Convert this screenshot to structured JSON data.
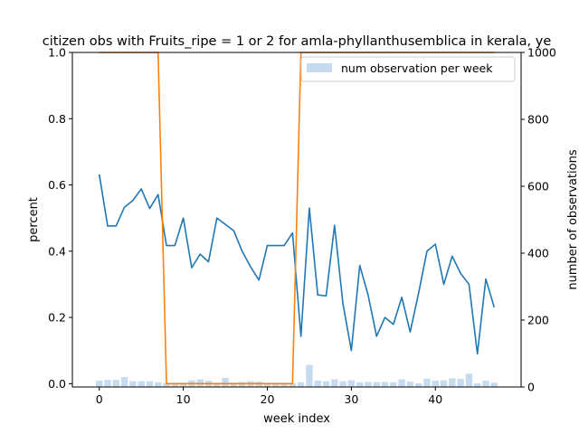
{
  "chart_data": {
    "type": "line",
    "title": "citizen obs with Fruits_ripe = 1 or 2 for amla-phyllanthusemblica in kerala, ye",
    "xlabel": "week index",
    "ylabel": "percent",
    "y2label": "number of observations",
    "xlim": [
      -3.2,
      50.2
    ],
    "ylim": [
      -0.01,
      1.0
    ],
    "y2lim": [
      0,
      1000
    ],
    "xticks": [
      0,
      10,
      20,
      30,
      40
    ],
    "yticks": [
      0.0,
      0.2,
      0.4,
      0.6,
      0.8,
      1.0
    ],
    "y2ticks": [
      0,
      200,
      400,
      600,
      800,
      1000
    ],
    "grid": false,
    "legend_position": "top-right",
    "colors": {
      "line1": "#1f77b4",
      "line2": "#ff7f0e",
      "bars": "#c6dbef"
    },
    "x": [
      0,
      1,
      2,
      3,
      4,
      5,
      6,
      7,
      8,
      9,
      10,
      11,
      12,
      13,
      14,
      15,
      16,
      17,
      18,
      19,
      20,
      21,
      22,
      23,
      24,
      25,
      26,
      27,
      28,
      29,
      30,
      31,
      32,
      33,
      34,
      35,
      36,
      37,
      38,
      39,
      40,
      41,
      42,
      43,
      44,
      45,
      46,
      47
    ],
    "series": [
      {
        "axis": "left",
        "color": "#1f77b4",
        "values": [
          0.632,
          0.476,
          0.476,
          0.533,
          0.553,
          0.588,
          0.529,
          0.571,
          0.417,
          0.417,
          0.5,
          0.35,
          0.391,
          0.368,
          0.5,
          0.481,
          0.462,
          0.4,
          0.353,
          0.313,
          0.417,
          0.417,
          0.417,
          0.455,
          0.143,
          0.53,
          0.268,
          0.265,
          0.478,
          0.241,
          0.1,
          0.357,
          0.267,
          0.143,
          0.2,
          0.179,
          0.261,
          0.156,
          0.273,
          0.4,
          0.421,
          0.3,
          0.385,
          0.333,
          0.3,
          0.09,
          0.316,
          0.231
        ]
      },
      {
        "axis": "left",
        "color": "#ff7f0e",
        "values": [
          1,
          1,
          1,
          1,
          1,
          1,
          1,
          1,
          0,
          0,
          0,
          0,
          0,
          0,
          0,
          0,
          0,
          0,
          0,
          0,
          0,
          0,
          0,
          0,
          1,
          1,
          1,
          1,
          1,
          1,
          1,
          1,
          1,
          1,
          1,
          1,
          1,
          1,
          1,
          1,
          1,
          1,
          1,
          1,
          1,
          1,
          1,
          1
        ]
      },
      {
        "name": "num observation per week",
        "type": "bar",
        "axis": "right",
        "color": "#c6dbef",
        "values": [
          19,
          21,
          21,
          30,
          17,
          17,
          17,
          14,
          12,
          12,
          12,
          20,
          23,
          19,
          12,
          27,
          13,
          15,
          17,
          16,
          12,
          12,
          12,
          11,
          14,
          66,
          19,
          17,
          23,
          17,
          20,
          14,
          15,
          14,
          15,
          14,
          23,
          16,
          11,
          25,
          19,
          20,
          26,
          24,
          40,
          11,
          19,
          13
        ]
      }
    ]
  }
}
